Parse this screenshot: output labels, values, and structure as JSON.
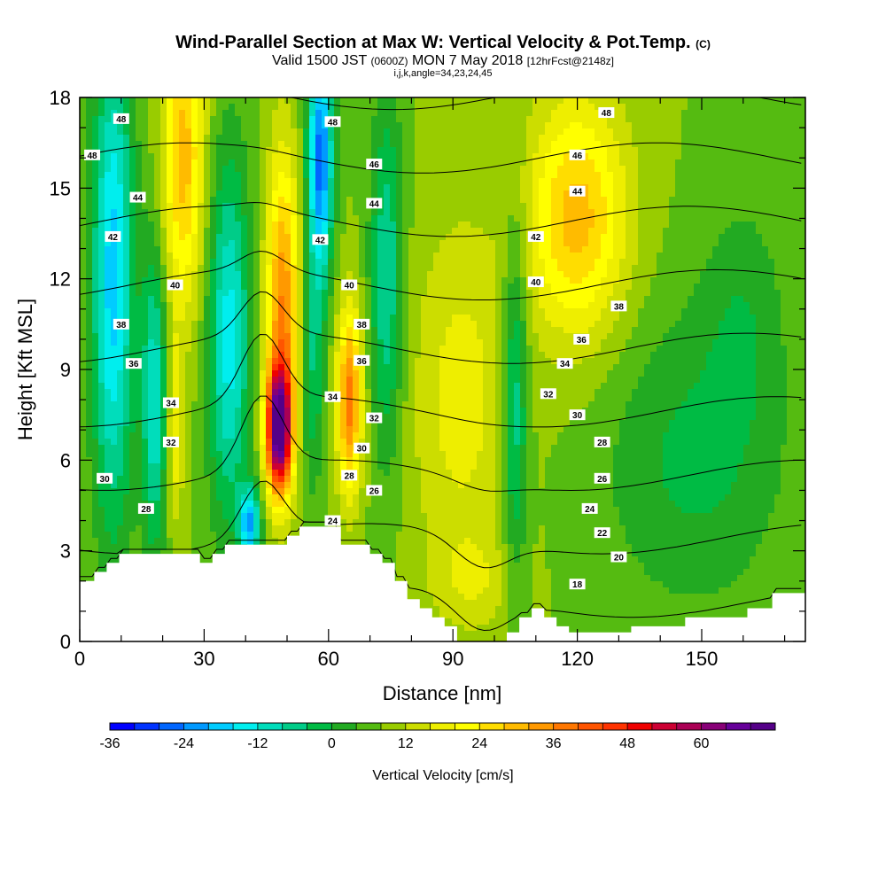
{
  "header": {
    "title_main": "Wind-Parallel Section at Max W: Vertical Velocity & Pot.Temp.",
    "title_mark": "(C)",
    "valid_prefix": "Valid 1500 JST",
    "valid_utc": "(0600Z)",
    "valid_date": "MON 7 May 2018",
    "valid_fcst": "[12hrFcst@2148z]",
    "ijk": "i,j,k,angle=34,23,24,45"
  },
  "chart_data": {
    "type": "heatmap",
    "xlabel": "Distance [nm]",
    "ylabel": "Height [Kft MSL]",
    "xlim": [
      0,
      175
    ],
    "ylim": [
      0,
      18
    ],
    "x_ticks": [
      0,
      30,
      60,
      90,
      120,
      150
    ],
    "y_ticks": [
      0,
      3,
      6,
      9,
      12,
      15,
      18
    ],
    "colorbar": {
      "title": "Vertical Velocity [cm/s]",
      "min": -36,
      "max": 72,
      "step": 4,
      "tick_values": [
        -36,
        -24,
        -12,
        0,
        12,
        24,
        36,
        48,
        60
      ],
      "colors": [
        "#0000ff",
        "#0033ff",
        "#0066ff",
        "#0099ff",
        "#00ccff",
        "#00eeee",
        "#00ddbb",
        "#00cc88",
        "#00bb44",
        "#22aa22",
        "#55bb11",
        "#99cc00",
        "#ccdd00",
        "#eeee00",
        "#ffff00",
        "#ffdd00",
        "#ffbb00",
        "#ff9900",
        "#ff7700",
        "#ff5500",
        "#ff3300",
        "#ee0000",
        "#cc0033",
        "#aa0055",
        "#880077",
        "#660099",
        "#550088"
      ]
    },
    "terrain_kft": [
      [
        0,
        2.0
      ],
      [
        3.5,
        2.0
      ],
      [
        3.5,
        2.3
      ],
      [
        6.5,
        2.3
      ],
      [
        6.5,
        2.6
      ],
      [
        9.5,
        2.6
      ],
      [
        9.5,
        2.9
      ],
      [
        29,
        2.9
      ],
      [
        29,
        2.6
      ],
      [
        32,
        2.6
      ],
      [
        32,
        2.9
      ],
      [
        35,
        2.9
      ],
      [
        35,
        3.2
      ],
      [
        50,
        3.2
      ],
      [
        50,
        3.5
      ],
      [
        53,
        3.5
      ],
      [
        53,
        3.8
      ],
      [
        63,
        3.8
      ],
      [
        63,
        3.2
      ],
      [
        70,
        3.2
      ],
      [
        70,
        2.9
      ],
      [
        73,
        2.9
      ],
      [
        73,
        2.6
      ],
      [
        76,
        2.6
      ],
      [
        76,
        2.0
      ],
      [
        79,
        2.0
      ],
      [
        79,
        1.4
      ],
      [
        82,
        1.4
      ],
      [
        82,
        1.1
      ],
      [
        85,
        1.1
      ],
      [
        85,
        0.8
      ],
      [
        88,
        0.8
      ],
      [
        88,
        0.5
      ],
      [
        91,
        0.5
      ],
      [
        91,
        0.0
      ],
      [
        103,
        0.0
      ],
      [
        103,
        0.3
      ],
      [
        106,
        0.3
      ],
      [
        106,
        0.8
      ],
      [
        109,
        0.8
      ],
      [
        109,
        1.1
      ],
      [
        112,
        1.1
      ],
      [
        112,
        0.8
      ],
      [
        115,
        0.8
      ],
      [
        115,
        0.5
      ],
      [
        118,
        0.5
      ],
      [
        118,
        0.3
      ],
      [
        133,
        0.3
      ],
      [
        133,
        0.5
      ],
      [
        146,
        0.5
      ],
      [
        146,
        0.8
      ],
      [
        161,
        0.8
      ],
      [
        161,
        1.1
      ],
      [
        167,
        1.1
      ],
      [
        167,
        1.6
      ],
      [
        175,
        1.6
      ]
    ],
    "w_field": {
      "background": 8,
      "features": [
        {
          "x": 8,
          "y": 12,
          "sx": 5,
          "sy": 8,
          "amp": -26
        },
        {
          "x": 18,
          "y": 8,
          "sx": 3,
          "sy": 5,
          "amp": -20
        },
        {
          "x": 25,
          "y": 16,
          "sx": 5,
          "sy": 5,
          "amp": 22
        },
        {
          "x": 23,
          "y": 7,
          "sx": 2,
          "sy": 3,
          "amp": 12
        },
        {
          "x": 36,
          "y": 10,
          "sx": 5,
          "sy": 6,
          "amp": -22
        },
        {
          "x": 41,
          "y": 3.9,
          "sx": 2.5,
          "sy": 1.2,
          "amp": -28
        },
        {
          "x": 48,
          "y": 7,
          "sx": 3,
          "sy": 2,
          "amp": 58
        },
        {
          "x": 49,
          "y": 11,
          "sx": 4,
          "sy": 5,
          "amp": 28
        },
        {
          "x": 58,
          "y": 16,
          "sx": 3,
          "sy": 4,
          "amp": -34
        },
        {
          "x": 56,
          "y": 9,
          "sx": 3,
          "sy": 4,
          "amp": -12
        },
        {
          "x": 65,
          "y": 8,
          "sx": 3,
          "sy": 3,
          "amp": 30
        },
        {
          "x": 74,
          "y": 12,
          "sx": 4,
          "sy": 6,
          "amp": -16
        },
        {
          "x": 105,
          "y": 8,
          "sx": 3,
          "sy": 6,
          "amp": -16
        },
        {
          "x": 120,
          "y": 14,
          "sx": 12,
          "sy": 4,
          "amp": 22
        },
        {
          "x": 92,
          "y": 8,
          "sx": 12,
          "sy": 6,
          "amp": 10
        },
        {
          "x": 148,
          "y": 6,
          "sx": 22,
          "sy": 5,
          "amp": -9
        },
        {
          "x": 160,
          "y": 11,
          "sx": 10,
          "sy": 4,
          "amp": -6
        },
        {
          "x": 95,
          "y": 2,
          "sx": 10,
          "sy": 1.5,
          "amp": 6
        }
      ]
    },
    "theta_contours": {
      "levels": [
        18,
        20,
        22,
        24,
        26,
        28,
        30,
        32,
        34,
        36,
        38,
        40,
        42,
        44,
        46,
        48
      ]
    },
    "contour_labels": [
      {
        "x": 10,
        "y": 17.3,
        "text": "48"
      },
      {
        "x": 3,
        "y": 16.1,
        "text": "48"
      },
      {
        "x": 14,
        "y": 14.7,
        "text": "44"
      },
      {
        "x": 8,
        "y": 13.4,
        "text": "42"
      },
      {
        "x": 23,
        "y": 11.8,
        "text": "40"
      },
      {
        "x": 10,
        "y": 10.5,
        "text": "38"
      },
      {
        "x": 13,
        "y": 9.2,
        "text": "36"
      },
      {
        "x": 22,
        "y": 7.9,
        "text": "34"
      },
      {
        "x": 22,
        "y": 6.6,
        "text": "32"
      },
      {
        "x": 6,
        "y": 5.4,
        "text": "30"
      },
      {
        "x": 16,
        "y": 4.4,
        "text": "28"
      },
      {
        "x": 61,
        "y": 17.2,
        "text": "48"
      },
      {
        "x": 71,
        "y": 15.8,
        "text": "46"
      },
      {
        "x": 71,
        "y": 14.5,
        "text": "44"
      },
      {
        "x": 58,
        "y": 13.3,
        "text": "42"
      },
      {
        "x": 65,
        "y": 11.8,
        "text": "40"
      },
      {
        "x": 68,
        "y": 10.5,
        "text": "38"
      },
      {
        "x": 68,
        "y": 9.3,
        "text": "36"
      },
      {
        "x": 61,
        "y": 8.1,
        "text": "34"
      },
      {
        "x": 71,
        "y": 7.4,
        "text": "32"
      },
      {
        "x": 68,
        "y": 6.4,
        "text": "30"
      },
      {
        "x": 65,
        "y": 5.5,
        "text": "28"
      },
      {
        "x": 71,
        "y": 5.0,
        "text": "26"
      },
      {
        "x": 61,
        "y": 4.0,
        "text": "24"
      },
      {
        "x": 127,
        "y": 17.5,
        "text": "48"
      },
      {
        "x": 120,
        "y": 16.1,
        "text": "46"
      },
      {
        "x": 120,
        "y": 14.9,
        "text": "44"
      },
      {
        "x": 110,
        "y": 13.4,
        "text": "42"
      },
      {
        "x": 110,
        "y": 11.9,
        "text": "40"
      },
      {
        "x": 130,
        "y": 11.1,
        "text": "38"
      },
      {
        "x": 121,
        "y": 10.0,
        "text": "36"
      },
      {
        "x": 117,
        "y": 9.2,
        "text": "34"
      },
      {
        "x": 113,
        "y": 8.2,
        "text": "32"
      },
      {
        "x": 120,
        "y": 7.5,
        "text": "30"
      },
      {
        "x": 126,
        "y": 6.6,
        "text": "28"
      },
      {
        "x": 126,
        "y": 5.4,
        "text": "26"
      },
      {
        "x": 123,
        "y": 4.4,
        "text": "24"
      },
      {
        "x": 126,
        "y": 3.6,
        "text": "22"
      },
      {
        "x": 130,
        "y": 2.8,
        "text": "20"
      },
      {
        "x": 120,
        "y": 1.9,
        "text": "18"
      }
    ]
  }
}
